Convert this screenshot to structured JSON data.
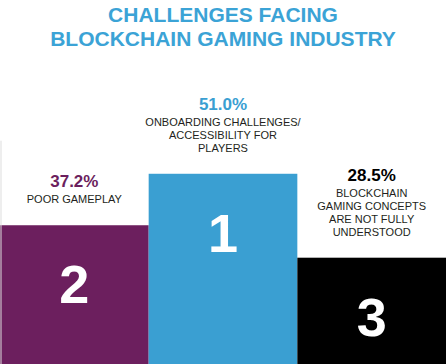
{
  "chart_data": {
    "type": "bar",
    "title": "CHALLENGES FACING\nBLOCKCHAIN GAMING INDUSTRY",
    "categories": [
      "POOR GAMEPLAY",
      "ONBOARDING CHALLENGES/\nACCESSIBILITY FOR\nPLAYERS",
      "BLOCKCHAIN\nGAMING CONCEPTS\nARE NOT FULLY\nUNDERSTOOD"
    ],
    "ranks": [
      "2",
      "1",
      "3"
    ],
    "values": [
      37.2,
      51.0,
      28.5
    ],
    "value_labels": [
      "37.2%",
      "51.0%",
      "28.5%"
    ],
    "colors": [
      "#6c1f5e",
      "#3a9fd2",
      "#000000"
    ],
    "ylim": [
      0,
      60
    ],
    "tick_labels": false,
    "grid": false,
    "data_labels": true
  }
}
